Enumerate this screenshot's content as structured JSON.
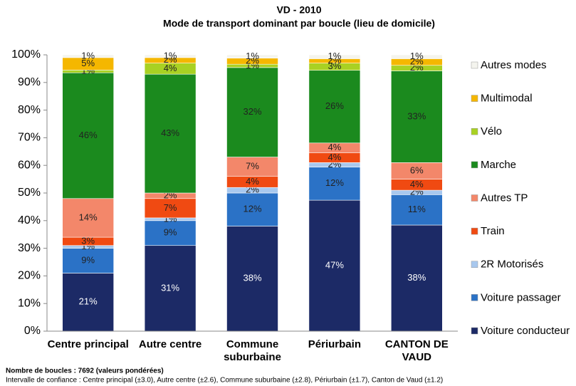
{
  "chart_data": {
    "type": "stacked_bar",
    "title": "VD - 2010",
    "subtitle": "Mode de transport dominant par boucle (lieu de domicile)",
    "categories": [
      "Centre principal",
      "Autre centre",
      "Commune suburbaine",
      "Périurbain",
      "CANTON DE VAUD"
    ],
    "series": [
      {
        "name": "Voiture conducteur",
        "color": "#1c2a66",
        "values": [
          21,
          31,
          38,
          47.4,
          38.4
        ],
        "value_labels": [
          "21%",
          "31%",
          "38%",
          "47%",
          "38%"
        ]
      },
      {
        "name": "Voiture passager",
        "color": "#2b72c6",
        "values": [
          9,
          9,
          12,
          12,
          11
        ],
        "value_labels": [
          "9%",
          "9%",
          "12%",
          "12%",
          "11%"
        ]
      },
      {
        "name": "2R Motorisés",
        "color": "#a8c8ee",
        "values": [
          1,
          1,
          2,
          1.6,
          1.6
        ],
        "value_labels": [
          "1%",
          "1%",
          "2%",
          "2%",
          "2%"
        ]
      },
      {
        "name": "Train",
        "color": "#f04a12",
        "values": [
          3,
          7,
          4,
          3.6,
          4
        ],
        "value_labels": [
          "3%",
          "7%",
          "4%",
          "4%",
          "4%"
        ]
      },
      {
        "name": "Autres TP",
        "color": "#f3876a",
        "values": [
          14,
          2,
          7,
          3.5,
          6
        ],
        "value_labels": [
          "14%",
          "2%",
          "7%",
          "4%",
          "6%"
        ]
      },
      {
        "name": "Marche",
        "color": "#1b8a1e",
        "values": [
          45.5,
          43,
          32.4,
          26.3,
          33.2
        ],
        "value_labels": [
          "46%",
          "43%",
          "32%",
          "26%",
          "33%"
        ]
      },
      {
        "name": "Vélo",
        "color": "#a9d123",
        "values": [
          1,
          4,
          1.2,
          2.6,
          2
        ],
        "value_labels": [
          "1%",
          "4%",
          "1%",
          "3%",
          "2%"
        ]
      },
      {
        "name": "Multimodal",
        "color": "#f5b700",
        "values": [
          4.5,
          2,
          2.2,
          1.6,
          2.4
        ],
        "value_labels": [
          "5%",
          "2%",
          "2%",
          "2%",
          "2%"
        ]
      },
      {
        "name": "Autres modes",
        "color": "#f4f4ee",
        "values": [
          1,
          1,
          1.2,
          1.4,
          1.4
        ],
        "value_labels": [
          "1%",
          "1%",
          "1%",
          "1%",
          "1%"
        ]
      }
    ],
    "ylim": [
      0,
      100
    ],
    "yticks": [
      {
        "value": 0,
        "label": "0%"
      },
      {
        "value": 10,
        "label": "10%"
      },
      {
        "value": 20,
        "label": "20%"
      },
      {
        "value": 30,
        "label": "30%"
      },
      {
        "value": 40,
        "label": "40%"
      },
      {
        "value": 50,
        "label": "50%"
      },
      {
        "value": 60,
        "label": "60%"
      },
      {
        "value": 70,
        "label": "70%"
      },
      {
        "value": 80,
        "label": "80%"
      },
      {
        "value": 90,
        "label": "90%"
      },
      {
        "value": 100,
        "label": "100%"
      }
    ],
    "legend": "right",
    "notes": [
      "Nombre de boucles : 7692 (valeurs pondérées)",
      "Intervalle de confiance : Centre principal (±3.0), Autre centre (±2.6), Commune suburbaine (±2.8), Périurbain (±1.7), Canton de Vaud (±1.2)"
    ]
  }
}
